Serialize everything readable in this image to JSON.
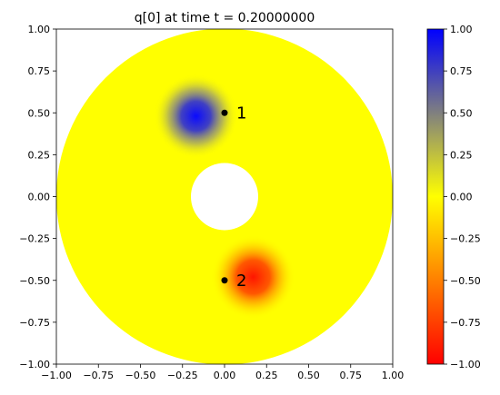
{
  "chart_data": {
    "type": "heatmap",
    "title": "q[0] at time t =      0.20000000",
    "xlabel": "",
    "ylabel": "",
    "xlim": [
      -1.0,
      1.0
    ],
    "ylim": [
      -1.0,
      1.0
    ],
    "x_ticks": [
      "−1.00",
      "−0.75",
      "−0.50",
      "−0.25",
      "0.00",
      "0.25",
      "0.50",
      "0.75",
      "1.00"
    ],
    "y_ticks": [
      "−1.00",
      "−0.75",
      "−0.50",
      "−0.25",
      "0.00",
      "0.25",
      "0.50",
      "0.75",
      "1.00"
    ],
    "x_tick_values": [
      -1.0,
      -0.75,
      -0.5,
      -0.25,
      0.0,
      0.25,
      0.5,
      0.75,
      1.0
    ],
    "y_tick_values": [
      -1.0,
      -0.75,
      -0.5,
      -0.25,
      0.0,
      0.25,
      0.5,
      0.75,
      1.0
    ],
    "grid": false,
    "domain": {
      "shape": "annulus",
      "center": [
        0.0,
        0.0
      ],
      "inner_radius": 0.2,
      "outer_radius": 1.0
    },
    "blobs": [
      {
        "center": [
          -0.17,
          0.48
        ],
        "value": 1.0,
        "radius": 0.25
      },
      {
        "center": [
          0.17,
          -0.48
        ],
        "value": -1.0,
        "radius": 0.25
      }
    ],
    "markers": [
      {
        "x": 0.0,
        "y": 0.5,
        "label": "1"
      },
      {
        "x": 0.0,
        "y": -0.5,
        "label": "2"
      }
    ],
    "colorbar": {
      "range": [
        -1.0,
        1.0
      ],
      "ticks": [
        "1.00",
        "0.75",
        "0.50",
        "0.25",
        "0.00",
        "−0.25",
        "−0.50",
        "−0.75",
        "−1.00"
      ],
      "tick_values": [
        1.0,
        0.75,
        0.5,
        0.25,
        0.0,
        -0.25,
        -0.5,
        -0.75,
        -1.0
      ],
      "colors": {
        "max": "#0000ff",
        "zero": "#ffff00",
        "min": "#ff0000"
      }
    }
  }
}
